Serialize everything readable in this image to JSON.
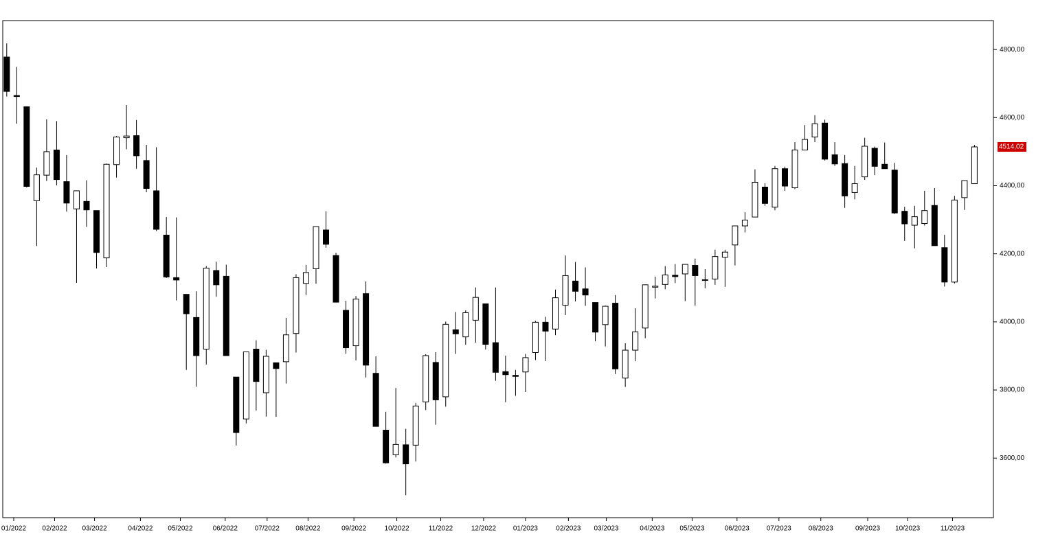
{
  "chart_data": {
    "type": "candlestick",
    "open": [
      4778,
      4665,
      4632,
      4356,
      4431,
      4505,
      4412,
      4332,
      4354,
      4327,
      4188,
      4462,
      4541,
      4547,
      4474,
      4385,
      4255,
      4130,
      4081,
      4013,
      3920,
      4151,
      4134,
      3838,
      3715,
      3920,
      3792,
      3880,
      3883,
      3966,
      4113,
      4156,
      4270,
      4195,
      4034,
      3930,
      4083,
      3849,
      3682,
      3610,
      3639,
      3638,
      3765,
      3881,
      3780,
      3977,
      3956,
      4005,
      4053,
      3939,
      3854,
      3843,
      3853,
      3910,
      3999,
      3979,
      4049,
      4120,
      4097,
      4057,
      3992,
      4055,
      3835,
      3917,
      3982,
      4102,
      4110,
      4137,
      4141,
      4166,
      4124,
      4126,
      4190,
      4226,
      4282,
      4308,
      4396,
      4337,
      4450,
      4394,
      4505,
      4543,
      4584,
      4491,
      4465,
      4380,
      4426,
      4510,
      4463,
      4446,
      4325,
      4284,
      4289,
      4342,
      4218,
      4117,
      4365,
      4406
    ],
    "high": [
      4818,
      4749,
      4632,
      4453,
      4595,
      4590,
      4490,
      4385,
      4416,
      4327,
      4465,
      4546,
      4637,
      4593,
      4520,
      4513,
      4308,
      4307,
      4081,
      4090,
      4164,
      4177,
      4168,
      3838,
      3913,
      3946,
      3918,
      3880,
      4012,
      4140,
      4167,
      4280,
      4325,
      4203,
      4062,
      4076,
      4119,
      3899,
      3736,
      3806,
      3686,
      3762,
      3905,
      3911,
      4001,
      4029,
      4034,
      4101,
      4053,
      4101,
      3901,
      3859,
      3906,
      4003,
      4015,
      4095,
      4195,
      4176,
      4160,
      4057,
      4048,
      4079,
      3937,
      4040,
      4110,
      4133,
      4164,
      4170,
      4170,
      4186,
      4155,
      4212,
      4212,
      4282,
      4322,
      4448,
      4407,
      4458,
      4456,
      4528,
      4578,
      4607,
      4594,
      4528,
      4490,
      4458,
      4541,
      4515,
      4527,
      4467,
      4338,
      4341,
      4385,
      4393,
      4256,
      4370,
      4415,
      4520
    ],
    "low": [
      4662,
      4582,
      4395,
      4223,
      4414,
      4401,
      4324,
      4115,
      4279,
      4157,
      4161,
      4424,
      4507,
      4450,
      4381,
      4267,
      4129,
      4063,
      3859,
      3810,
      3875,
      4074,
      3900,
      3637,
      3702,
      3740,
      3722,
      3721,
      3819,
      3910,
      4079,
      4112,
      4218,
      4057,
      3907,
      3887,
      3837,
      3694,
      3584,
      3602,
      3491,
      3590,
      3741,
      3698,
      3751,
      3906,
      3933,
      3939,
      3919,
      3827,
      3764,
      3783,
      3794,
      3888,
      3885,
      3961,
      4020,
      4060,
      4047,
      3943,
      3928,
      3847,
      3809,
      3885,
      3952,
      4069,
      4096,
      4114,
      4061,
      4048,
      4099,
      4109,
      4103,
      4166,
      4263,
      4308,
      4341,
      4328,
      4385,
      4390,
      4505,
      4528,
      4474,
      4458,
      4335,
      4360,
      4417,
      4431,
      4450,
      4317,
      4238,
      4216,
      4283,
      4223,
      4104,
      4113,
      4329,
      4406
    ],
    "close": [
      4677,
      4662,
      4398,
      4432,
      4500,
      4418,
      4349,
      4385,
      4329,
      4204,
      4463,
      4543,
      4546,
      4488,
      4392,
      4272,
      4132,
      4123,
      4024,
      3901,
      4158,
      4109,
      3901,
      3675,
      3912,
      3825,
      3899,
      3863,
      3962,
      4130,
      4145,
      4280,
      4228,
      4058,
      3924,
      4067,
      3873,
      3693,
      3586,
      3640,
      3583,
      3753,
      3901,
      3771,
      3993,
      3965,
      4027,
      4072,
      3934,
      3852,
      3845,
      3840,
      3895,
      3999,
      3973,
      4071,
      4136,
      4090,
      4079,
      3970,
      4046,
      3862,
      3917,
      3971,
      4109,
      4105,
      4138,
      4133,
      4169,
      4136,
      4124,
      4192,
      4205,
      4282,
      4299,
      4410,
      4348,
      4450,
      4399,
      4505,
      4536,
      4582,
      4478,
      4464,
      4370,
      4406,
      4516,
      4457,
      4450,
      4320,
      4288,
      4309,
      4327,
      4224,
      4117,
      4358,
      4415,
      4514.02
    ],
    "last_label": {
      "value": 4514.02,
      "label": "4514,02"
    },
    "xlim": [
      -0.4,
      98.9
    ],
    "xticks": [
      {
        "value": 0.7,
        "label": "01/2022"
      },
      {
        "value": 4.8,
        "label": "02/2022"
      },
      {
        "value": 8.8,
        "label": "03/2022"
      },
      {
        "value": 13.4,
        "label": "04/2022"
      },
      {
        "value": 17.4,
        "label": "05/2022"
      },
      {
        "value": 21.9,
        "label": "06/2022"
      },
      {
        "value": 26.1,
        "label": "07/2022"
      },
      {
        "value": 30.2,
        "label": "08/2022"
      },
      {
        "value": 34.8,
        "label": "09/2022"
      },
      {
        "value": 39.1,
        "label": "10/2022"
      },
      {
        "value": 43.5,
        "label": "11/2022"
      },
      {
        "value": 47.8,
        "label": "12/2022"
      },
      {
        "value": 52.0,
        "label": "01/2023"
      },
      {
        "value": 56.3,
        "label": "02/2023"
      },
      {
        "value": 60.1,
        "label": "03/2023"
      },
      {
        "value": 64.7,
        "label": "04/2023"
      },
      {
        "value": 68.7,
        "label": "05/2023"
      },
      {
        "value": 73.2,
        "label": "06/2023"
      },
      {
        "value": 77.4,
        "label": "07/2023"
      },
      {
        "value": 81.6,
        "label": "08/2023"
      },
      {
        "value": 86.3,
        "label": "09/2023"
      },
      {
        "value": 90.3,
        "label": "10/2023"
      },
      {
        "value": 94.8,
        "label": "11/2023"
      }
    ],
    "ylim": [
      3425,
      4885
    ],
    "yticks": [
      {
        "value": 3600,
        "label": "3600,00"
      },
      {
        "value": 3800,
        "label": "3800,00"
      },
      {
        "value": 4000,
        "label": "4000,00"
      },
      {
        "value": 4200,
        "label": "4200,00"
      },
      {
        "value": 4400,
        "label": "4400,00"
      },
      {
        "value": 4600,
        "label": "4600,00"
      },
      {
        "value": 4800,
        "label": "4800,00"
      }
    ],
    "up_color": "#ffffff",
    "down_color": "#000000",
    "last_color": "#cc0000"
  }
}
